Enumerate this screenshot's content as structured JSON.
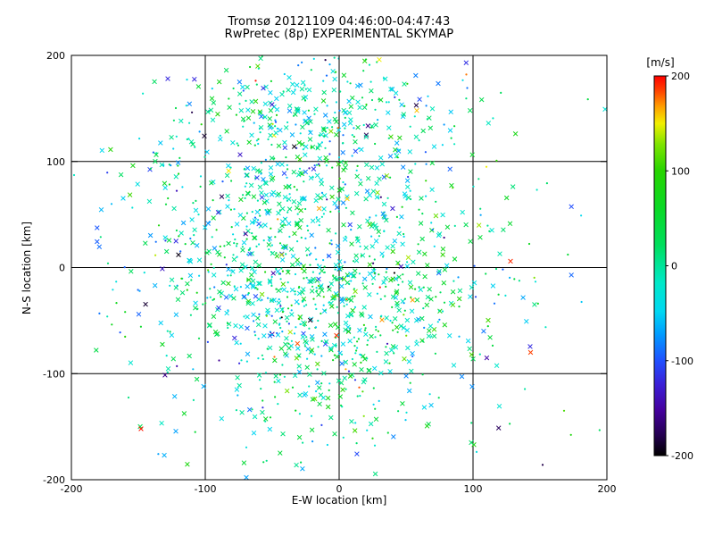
{
  "chart_data": {
    "type": "scatter",
    "title": "Tromsø 20121109 04:46:00-04:47:43",
    "subtitle": "RwPretec (8p) EXPERIMENTAL SKYMAP",
    "xlabel": "E-W location [km]",
    "ylabel": "N-S location [km]",
    "xlim": [
      -200,
      200
    ],
    "ylim": [
      -200,
      200
    ],
    "xticks": [
      -200,
      -100,
      0,
      100,
      200
    ],
    "yticks": [
      -200,
      -100,
      0,
      100,
      200
    ],
    "grid_values": [
      -100,
      0,
      100
    ],
    "grid_on": true,
    "background": "#ffffff",
    "axis_color": "#000000",
    "text_color": "#000000",
    "colorbar": {
      "label": "[m/s]",
      "min": -200,
      "max": 200,
      "ticks": [
        200,
        100,
        0,
        -100,
        -200
      ],
      "position": "right"
    },
    "colormap": [
      [
        -200,
        "#000000"
      ],
      [
        -178,
        "#250052"
      ],
      [
        -152,
        "#45009e"
      ],
      [
        -125,
        "#3b1fd6"
      ],
      [
        -100,
        "#2050ff"
      ],
      [
        -72,
        "#009cff"
      ],
      [
        -48,
        "#00d8f2"
      ],
      [
        -18,
        "#00e8c8"
      ],
      [
        2,
        "#00e494"
      ],
      [
        22,
        "#00de5c"
      ],
      [
        60,
        "#0ad926"
      ],
      [
        100,
        "#27d400"
      ],
      [
        128,
        "#7fe400"
      ],
      [
        150,
        "#f2ef00"
      ],
      [
        168,
        "#ff9d00"
      ],
      [
        184,
        "#ff4400"
      ],
      [
        200,
        "#ff0000"
      ]
    ],
    "n_points_estimate": 1680,
    "scatter": {
      "seed": 20121109,
      "marker_mix": {
        "x": 0.55,
        "dot": 0.45
      },
      "extreme_fraction": 0.012,
      "clusters": [
        {
          "cx": -35,
          "cy": 40,
          "sx": 45,
          "sy": 75,
          "n": 600,
          "v_mean": -12,
          "v_sd": 45
        },
        {
          "cx": -10,
          "cy": 150,
          "sx": 50,
          "sy": 35,
          "n": 190,
          "v_mean": -5,
          "v_sd": 55
        },
        {
          "cx": -20,
          "cy": -80,
          "sx": 50,
          "sy": 45,
          "n": 240,
          "v_mean": 5,
          "v_sd": 55
        },
        {
          "cx": 10,
          "cy": -30,
          "sx": 60,
          "sy": 40,
          "n": 150,
          "v_mean": 10,
          "v_sd": 55
        },
        {
          "cx": -115,
          "cy": 20,
          "sx": 35,
          "sy": 75,
          "n": 120,
          "v_mean": -15,
          "v_sd": 60
        },
        {
          "cx": 55,
          "cy": 10,
          "sx": 45,
          "sy": 70,
          "n": 170,
          "v_mean": 15,
          "v_sd": 65
        },
        {
          "cx": -10,
          "cy": 0,
          "sx": 110,
          "sy": 120,
          "n": 210,
          "v_mean": 0,
          "v_sd": 70
        }
      ],
      "outliers": [
        [
          -148,
          -152,
          195,
          "x"
        ],
        [
          128,
          6,
          190,
          "x"
        ],
        [
          143,
          -80,
          185,
          "x"
        ],
        [
          95,
          182,
          175,
          "dot"
        ],
        [
          58,
          148,
          160,
          "x"
        ],
        [
          30,
          196,
          150,
          "x"
        ],
        [
          -120,
          12,
          -195,
          "x"
        ],
        [
          -8,
          -18,
          -190,
          "dot"
        ],
        [
          -128,
          178,
          -120,
          "x"
        ],
        [
          -90,
          -38,
          -110,
          "x"
        ],
        [
          152,
          -186,
          -180,
          "dot"
        ],
        [
          168,
          -135,
          110,
          "dot"
        ],
        [
          -170,
          60,
          -60,
          "dot"
        ],
        [
          110,
          95,
          150,
          "dot"
        ]
      ]
    }
  }
}
